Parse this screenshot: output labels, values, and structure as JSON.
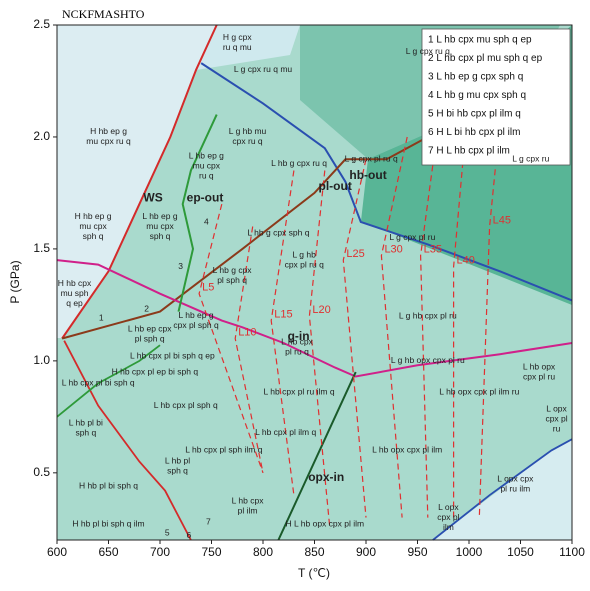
{
  "chart_data": {
    "type": "phase-diagram",
    "title": "NCKFMASHTO",
    "x_label": "T (℃)",
    "y_label": "P (GPa)",
    "xlim": [
      600,
      1100
    ],
    "xticks": [
      600,
      650,
      700,
      750,
      800,
      850,
      900,
      950,
      1000,
      1050,
      1100
    ],
    "ylim": [
      0.2,
      2.5
    ],
    "yticks": [
      0.5,
      {
        "value": 1,
        "label": "1.0"
      },
      1.5,
      {
        "value": 2,
        "label": "2.0"
      },
      2.5
    ],
    "legend": [
      "1 L hb cpx mu sph q ep",
      "2 L hb cpx pl mu sph q ep",
      "3 L hb ep g cpx sph q",
      "4 L hb g mu cpx sph q",
      "5 H bi hb cpx pl ilm q",
      "6 H L bi hb cpx pl ilm",
      "7 H L hb cpx pl ilm"
    ],
    "series": [
      {
        "name": "WS",
        "color": "#d42a2a",
        "dash": false,
        "x": [
          605,
          650,
          680,
          710,
          735,
          755
        ],
        "values": [
          1.1,
          1.4,
          1.7,
          2.0,
          2.3,
          2.5
        ]
      },
      {
        "name": "hb-out",
        "color": "#2a4fb0",
        "dash": false,
        "x": [
          740,
          800,
          860,
          880,
          895,
          960,
          1030,
          1100
        ],
        "values": [
          2.33,
          2.15,
          1.95,
          1.8,
          1.62,
          1.52,
          1.4,
          1.27
        ]
      },
      {
        "name": "pl-out",
        "color": "#8b3a1a",
        "dash": false,
        "x": [
          605,
          700,
          780,
          850,
          880,
          920,
          1000,
          1090
        ],
        "values": [
          1.1,
          1.22,
          1.5,
          1.75,
          1.9,
          1.9,
          2.1,
          2.45
        ]
      },
      {
        "name": "g-in",
        "color": "#d0208a",
        "dash": false,
        "x": [
          600,
          640,
          700,
          760,
          780,
          820,
          870,
          890,
          950,
          1030,
          1100
        ],
        "values": [
          1.45,
          1.43,
          1.3,
          1.18,
          1.15,
          1.08,
          0.97,
          0.93,
          0.98,
          1.03,
          1.08
        ]
      },
      {
        "name": "ep-out",
        "color": "#2e9a3a",
        "dash": false,
        "x": [
          755,
          730,
          722,
          732,
          718
        ],
        "values": [
          2.1,
          1.85,
          1.7,
          1.5,
          1.22
        ]
      },
      {
        "name": "opx-in",
        "color": "#1a5a2a",
        "dash": false,
        "x": [
          815,
          840,
          870,
          890
        ],
        "values": [
          0.2,
          0.45,
          0.75,
          0.95
        ]
      },
      {
        "name": "L5",
        "color": "#e03030",
        "dash": true,
        "x": [
          760,
          738,
          800
        ],
        "values": [
          1.7,
          1.3,
          0.5
        ]
      },
      {
        "name": "L10",
        "color": "#e03030",
        "dash": true,
        "x": [
          790,
          773,
          800
        ],
        "values": [
          1.6,
          1.1,
          0.5
        ]
      },
      {
        "name": "L15",
        "color": "#e03030",
        "dash": true,
        "x": [
          830,
          808,
          830
        ],
        "values": [
          1.85,
          1.18,
          0.4
        ]
      },
      {
        "name": "L20",
        "color": "#e03030",
        "dash": true,
        "x": [
          860,
          845,
          865
        ],
        "values": [
          1.85,
          1.2,
          0.25
        ]
      },
      {
        "name": "L25",
        "color": "#e03030",
        "dash": true,
        "x": [
          900,
          878,
          900
        ],
        "values": [
          1.9,
          1.45,
          0.3
        ]
      },
      {
        "name": "L30",
        "color": "#e03030",
        "dash": true,
        "x": [
          940,
          915,
          935
        ],
        "values": [
          2.0,
          1.47,
          0.3
        ]
      },
      {
        "name": "L35",
        "color": "#e03030",
        "dash": true,
        "x": [
          970,
          953,
          960
        ],
        "values": [
          2.05,
          1.47,
          0.3
        ]
      },
      {
        "name": "L40",
        "color": "#e03030",
        "dash": true,
        "x": [
          1000,
          985,
          985
        ],
        "values": [
          2.2,
          1.42,
          0.3
        ]
      },
      {
        "name": "L45",
        "color": "#e03030",
        "dash": true,
        "x": [
          1035,
          1020,
          1010
        ],
        "values": [
          2.3,
          1.6,
          0.3
        ]
      }
    ],
    "boundaries": [
      {
        "color": "#d42a2a",
        "x": [
          607,
          640,
          680,
          705,
          730
        ],
        "values": [
          1.09,
          0.8,
          0.55,
          0.42,
          0.2
        ]
      },
      {
        "color": "#2e9a3a",
        "x": [
          600,
          640,
          680,
          700
        ],
        "values": [
          0.75,
          0.9,
          1.0,
          1.07
        ]
      },
      {
        "color": "#2a4fb0",
        "x": [
          965,
          1020,
          1080,
          1100
        ],
        "values": [
          0.2,
          0.4,
          0.6,
          0.65
        ]
      }
    ],
    "fields": [
      {
        "lines": [
          "H g cpx",
          "ru q mu"
        ],
        "x": 775,
        "y": 2.42
      },
      {
        "lines": [
          "L g cpx ru q mu"
        ],
        "x": 800,
        "y": 2.3
      },
      {
        "lines": [
          "L g cpx ru q"
        ],
        "x": 960,
        "y": 2.38
      },
      {
        "lines": [
          "H hb ep g",
          "mu cpx ru q"
        ],
        "x": 650,
        "y": 2.0
      },
      {
        "lines": [
          "L g hb mu",
          "cpx ru q"
        ],
        "x": 785,
        "y": 2.0
      },
      {
        "lines": [
          "L hb g cpx ru q"
        ],
        "x": 835,
        "y": 1.88
      },
      {
        "lines": [
          "L g cpx pl ru q"
        ],
        "x": 905,
        "y": 1.9
      },
      {
        "lines": [
          "L g cpx ru"
        ],
        "x": 1060,
        "y": 1.9
      },
      {
        "lines": [
          "L hb ep g",
          "mu cpx",
          "ru q"
        ],
        "x": 745,
        "y": 1.87
      },
      {
        "lines": [
          "H hb ep g",
          "mu cpx",
          "sph q"
        ],
        "x": 635,
        "y": 1.6
      },
      {
        "lines": [
          "L hb ep g",
          "mu cpx",
          "sph q"
        ],
        "x": 700,
        "y": 1.6
      },
      {
        "lines": [
          "4"
        ],
        "x": 745,
        "y": 1.62
      },
      {
        "lines": [
          "L hb g  cpx sph q"
        ],
        "x": 815,
        "y": 1.57
      },
      {
        "lines": [
          "L g hb",
          "cpx pl ru q"
        ],
        "x": 840,
        "y": 1.45
      },
      {
        "lines": [
          "L g cpx pl ru"
        ],
        "x": 945,
        "y": 1.55
      },
      {
        "lines": [
          "H hb cpx",
          "mu sph",
          "q ep"
        ],
        "x": 617,
        "y": 1.3
      },
      {
        "lines": [
          "1"
        ],
        "x": 643,
        "y": 1.19
      },
      {
        "lines": [
          "2"
        ],
        "x": 687,
        "y": 1.23
      },
      {
        "lines": [
          "3"
        ],
        "x": 720,
        "y": 1.42
      },
      {
        "lines": [
          "L hb g cpx",
          "pl sph q"
        ],
        "x": 770,
        "y": 1.38
      },
      {
        "lines": [
          "L hb ep g",
          "cpx pl sph q"
        ],
        "x": 735,
        "y": 1.18
      },
      {
        "lines": [
          "L hb ep cpx",
          "pl sph q"
        ],
        "x": 690,
        "y": 1.12
      },
      {
        "lines": [
          "L g hb cpx pl ru"
        ],
        "x": 960,
        "y": 1.2
      },
      {
        "lines": [
          "L hb cpx",
          "pl ru q"
        ],
        "x": 833,
        "y": 1.06
      },
      {
        "lines": [
          "L hb cpx pl bi sph q ep"
        ],
        "x": 712,
        "y": 1.02
      },
      {
        "lines": [
          "H hb cpx pl ep bi sph q"
        ],
        "x": 695,
        "y": 0.95
      },
      {
        "lines": [
          "L g hb opx cpx pl ru"
        ],
        "x": 960,
        "y": 1.0
      },
      {
        "lines": [
          "L hb opx",
          "cpx pl ru"
        ],
        "x": 1068,
        "y": 0.95
      },
      {
        "lines": [
          "L hb cpx pl sph q"
        ],
        "x": 725,
        "y": 0.8
      },
      {
        "lines": [
          "L hb cpx pl ru ilm q"
        ],
        "x": 835,
        "y": 0.86
      },
      {
        "lines": [
          "L hb opx cpx pl ilm ru"
        ],
        "x": 1010,
        "y": 0.86
      },
      {
        "lines": [
          "L hb cpx pl bi sph q"
        ],
        "x": 640,
        "y": 0.9
      },
      {
        "lines": [
          "L hb pl bi",
          "sph q"
        ],
        "x": 628,
        "y": 0.7
      },
      {
        "lines": [
          "L hb opx cpx pl ilm"
        ],
        "x": 940,
        "y": 0.6
      },
      {
        "lines": [
          "L opx",
          "cpx pl",
          "ru"
        ],
        "x": 1085,
        "y": 0.74
      },
      {
        "lines": [
          "L hb cpx pl ilm q"
        ],
        "x": 822,
        "y": 0.68
      },
      {
        "lines": [
          "L hb cpx pl sph ilm q"
        ],
        "x": 762,
        "y": 0.6
      },
      {
        "lines": [
          "L hb pl",
          "sph q"
        ],
        "x": 717,
        "y": 0.53
      },
      {
        "lines": [
          "H hb pl bi sph q"
        ],
        "x": 650,
        "y": 0.44
      },
      {
        "lines": [
          "L hb cpx",
          "pl ilm"
        ],
        "x": 785,
        "y": 0.35
      },
      {
        "lines": [
          "L opx cpx",
          "pl ru ilm"
        ],
        "x": 1045,
        "y": 0.45
      },
      {
        "lines": [
          "L opx",
          "cpx pl",
          "ilm"
        ],
        "x": 980,
        "y": 0.3
      },
      {
        "lines": [
          "H L hb opx cpx pl ilm"
        ],
        "x": 860,
        "y": 0.27
      },
      {
        "lines": [
          "H hb pl bi sph q ilm"
        ],
        "x": 650,
        "y": 0.27
      },
      {
        "lines": [
          "5"
        ],
        "x": 707,
        "y": 0.23
      },
      {
        "lines": [
          "6"
        ],
        "x": 728,
        "y": 0.22
      },
      {
        "lines": [
          "7"
        ],
        "x": 747,
        "y": 0.28
      }
    ]
  }
}
